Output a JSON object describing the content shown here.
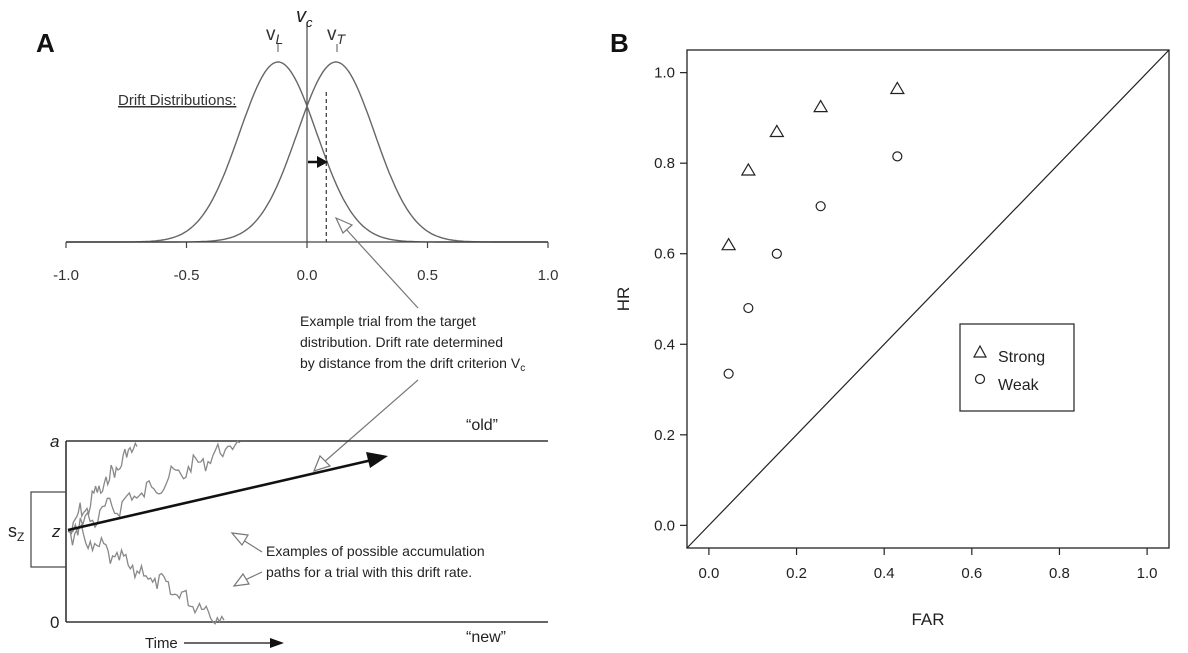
{
  "panel_a": {
    "letter": "A",
    "drift_title": "Drift Distributions:",
    "label_vl": "vL",
    "label_vc": "vc",
    "label_vt": "vT",
    "tick_labels": [
      "-1.0",
      "-0.5",
      "0.0",
      "0.5",
      "1.0"
    ],
    "annotation_target": [
      "Example trial from the target",
      "distribution. Drift rate determined",
      "by distance from the drift criterion V"
    ],
    "annotation_target_sub": "c",
    "annotation_paths": [
      "Examples of possible accumulation",
      "paths for a trial with this drift rate."
    ],
    "boundary_top_letter": "a",
    "boundary_bottom_letter": "0",
    "start_letter": "z",
    "sz_label": "s",
    "sz_sub": "Z",
    "upper_response": "“old”",
    "lower_response": "“new”",
    "time_label": "Time"
  },
  "chart_data": [
    {
      "type": "line",
      "panel": "A",
      "subtitle": "Drift Distributions:",
      "xlim": [
        -1.0,
        1.0
      ],
      "xticks": [
        -1.0,
        -0.5,
        0.0,
        0.5,
        1.0
      ],
      "series": [
        {
          "name": "vL",
          "mean": -0.12,
          "sd": 0.16
        },
        {
          "name": "vT",
          "mean": 0.12,
          "sd": 0.16
        }
      ],
      "criterion_vc": 0.0,
      "example_trial_drift": 0.08
    },
    {
      "type": "scatter",
      "panel": "B",
      "xlabel": "FAR",
      "ylabel": "HR",
      "xlim": [
        -0.05,
        1.05
      ],
      "ylim": [
        -0.05,
        1.05
      ],
      "xticks": [
        "0.0",
        "0.2",
        "0.4",
        "0.6",
        "0.8",
        "1.0"
      ],
      "yticks": [
        "0.0",
        "0.2",
        "0.4",
        "0.6",
        "0.8",
        "1.0"
      ],
      "diagonal": true,
      "legend_position": "center-right",
      "series": [
        {
          "name": "Strong",
          "marker": "triangle",
          "x": [
            0.045,
            0.09,
            0.155,
            0.255,
            0.43
          ],
          "y": [
            0.62,
            0.785,
            0.87,
            0.925,
            0.965
          ]
        },
        {
          "name": "Weak",
          "marker": "circle",
          "x": [
            0.045,
            0.09,
            0.155,
            0.255,
            0.43
          ],
          "y": [
            0.335,
            0.48,
            0.6,
            0.705,
            0.815
          ]
        }
      ]
    }
  ],
  "panel_b": {
    "letter": "B"
  }
}
